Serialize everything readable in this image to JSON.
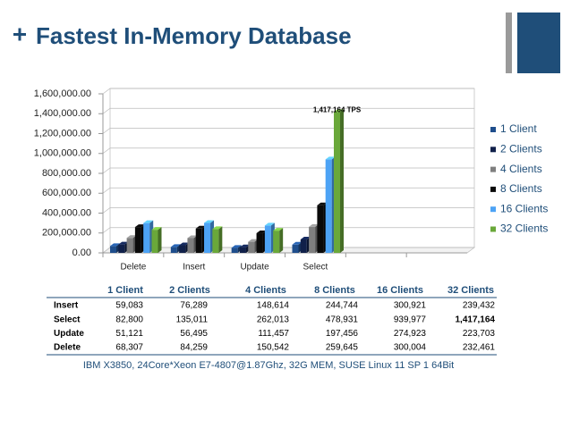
{
  "title": "Fastest In-Memory Database",
  "chart_data": {
    "type": "bar3d",
    "categories": [
      "Delete",
      "Insert",
      "Update",
      "Select",
      null,
      null
    ],
    "series": [
      {
        "name": "1 Client",
        "color": "#1f4e8c",
        "values": [
          68307,
          59083,
          51121,
          82800,
          null,
          null
        ]
      },
      {
        "name": "2 Clients",
        "color": "#10204a",
        "values": [
          84259,
          76289,
          56495,
          135011,
          null,
          null
        ]
      },
      {
        "name": "4 Clients",
        "color": "#7f7f7f",
        "values": [
          150542,
          148614,
          111457,
          262013,
          null,
          null
        ]
      },
      {
        "name": "8 Clients",
        "color": "#0a0a0a",
        "values": [
          259645,
          244744,
          197456,
          478931,
          null,
          null
        ]
      },
      {
        "name": "16 Clients",
        "color": "#4da3f5",
        "values": [
          300004,
          300921,
          274923,
          939977,
          null,
          null
        ]
      },
      {
        "name": "32 Clients",
        "color": "#6aa83a",
        "values": [
          232461,
          239432,
          223703,
          1417164,
          null,
          null
        ]
      }
    ],
    "ylim": [
      0,
      1600000
    ],
    "yticks": [
      {
        "value": 0,
        "label": "0.00"
      },
      {
        "value": 200000,
        "label": "200,000.00"
      },
      {
        "value": 400000,
        "label": "400,000.00"
      },
      {
        "value": 600000,
        "label": "600,000.00"
      },
      {
        "value": 800000,
        "label": "800,000.00"
      },
      {
        "value": 1000000,
        "label": "1,000,000.00"
      },
      {
        "value": 1200000,
        "label": "1,200,000.00"
      },
      {
        "value": 1400000,
        "label": "1,400,000.00"
      },
      {
        "value": 1600000,
        "label": "1,600,000.00"
      }
    ],
    "grid": true,
    "legend": "right",
    "annotations": [
      {
        "text": "1,417,164 TPS",
        "series": 5,
        "category": 3
      }
    ]
  },
  "table": {
    "columns": [
      "1 Client",
      "2 Clients",
      "4 Clients",
      "8 Clients",
      "16 Clients",
      "32 Clients"
    ],
    "rows": [
      [
        "Insert",
        "59,083",
        "76,289",
        "148,614",
        "244,744",
        "300,921",
        "239,432"
      ],
      [
        "Select",
        "82,800",
        "135,011",
        "262,013",
        "478,931",
        "939,977",
        "1,417,164"
      ],
      [
        "Update",
        "51,121",
        "56,495",
        "111,457",
        "197,456",
        "274,923",
        "223,703"
      ],
      [
        "Delete",
        "68,307",
        "84,259",
        "150,542",
        "259,645",
        "300,004",
        "232,461"
      ]
    ]
  },
  "footer": "IBM X3850, 24Core*Xeon E7-4807@1.87Ghz, 32G MEM,  SUSE Linux 11 SP 1 64Bit"
}
